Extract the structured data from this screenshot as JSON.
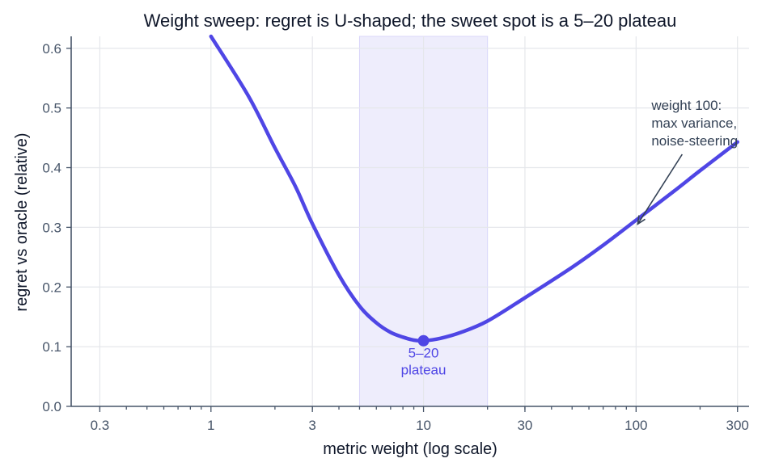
{
  "chart_data": {
    "type": "line",
    "title": "Weight sweep: regret is U-shaped; the sweet spot is a 5–20 plateau",
    "xlabel": "metric weight  (log scale)",
    "ylabel": "regret vs oracle  (relative)",
    "x_scale": "log",
    "xlim": [
      0.22,
      340
    ],
    "ylim": [
      0,
      0.62
    ],
    "x_ticks": [
      0.3,
      1,
      3,
      10,
      30,
      100,
      300
    ],
    "x_tick_labels": [
      "0.3",
      "1",
      "3",
      "10",
      "30",
      "100",
      "300"
    ],
    "y_ticks": [
      0.0,
      0.1,
      0.2,
      0.3,
      0.4,
      0.5,
      0.6
    ],
    "y_tick_labels": [
      "0.0",
      "0.1",
      "0.2",
      "0.3",
      "0.4",
      "0.5",
      "0.6"
    ],
    "grid": true,
    "series": [
      {
        "x": [
          1,
          1.5,
          2,
          2.5,
          3,
          4,
          5,
          6,
          7,
          8,
          9,
          10,
          12,
          15,
          20,
          30,
          50,
          70,
          100,
          150,
          200,
          300
        ],
        "y": [
          0.62,
          0.52,
          0.433,
          0.368,
          0.306,
          0.22,
          0.168,
          0.14,
          0.124,
          0.116,
          0.111,
          0.11,
          0.114,
          0.124,
          0.143,
          0.182,
          0.233,
          0.27,
          0.312,
          0.36,
          0.395,
          0.443
        ],
        "color": "#4f46e5"
      }
    ],
    "highlight_band": {
      "x_from": 5,
      "x_to": 20,
      "color": "#eeedfc"
    },
    "marker": {
      "x": 10,
      "y": 0.11,
      "color": "#4f46e5"
    },
    "annotations": [
      {
        "lines": [
          "5–20",
          "plateau"
        ],
        "x": 10,
        "y": 0.11
      },
      {
        "lines": [
          "weight 100:",
          "max variance,",
          "noise-steering"
        ],
        "x": 100,
        "y": 0.3
      }
    ]
  }
}
